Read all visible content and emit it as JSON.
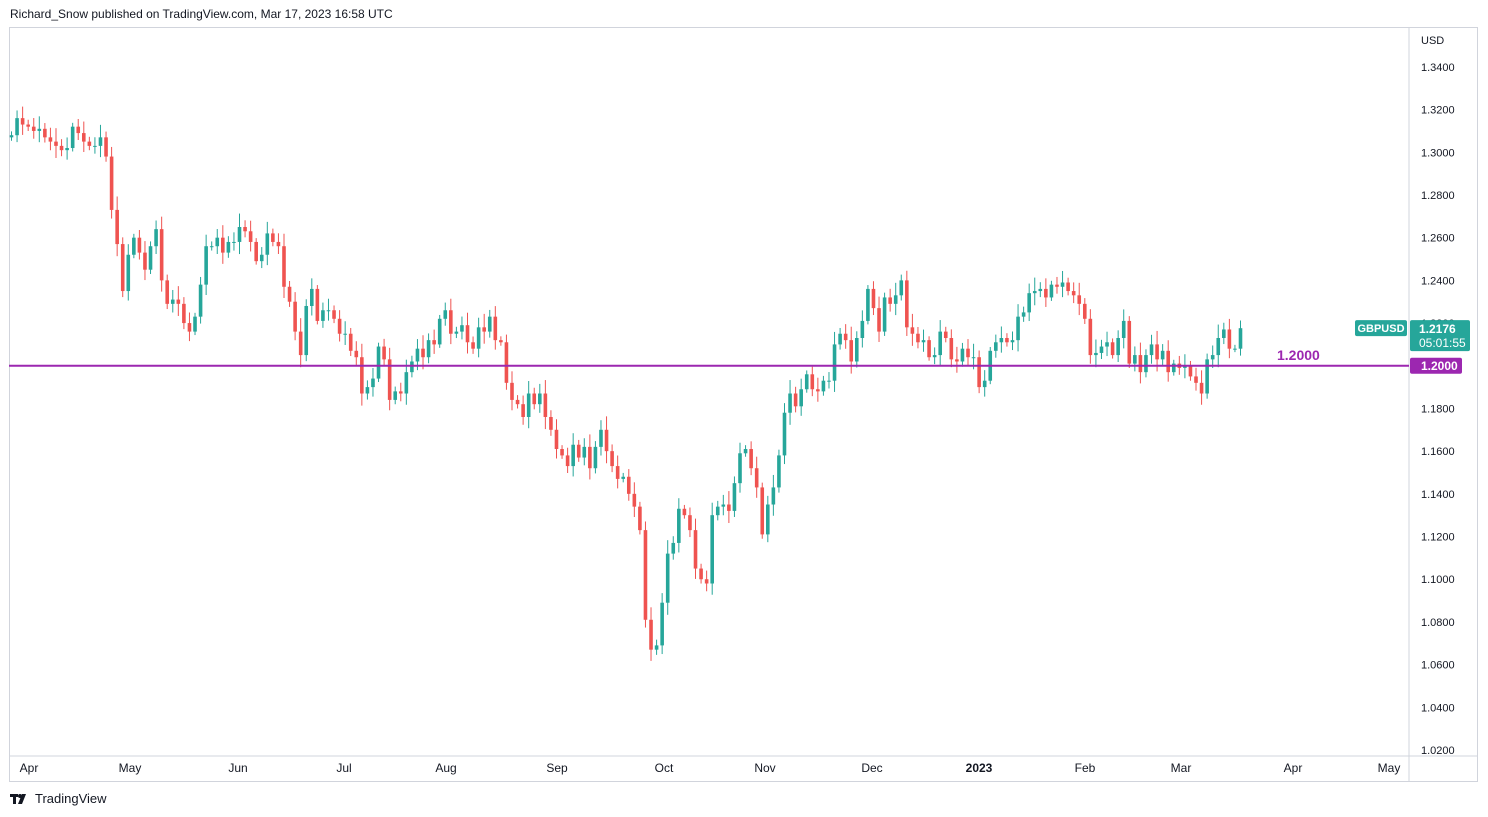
{
  "header": {
    "text": "Richard_Snow published on TradingView.com, Mar 17, 2023 16:58 UTC"
  },
  "footer": {
    "brand": "TradingView",
    "logo_icon": "tradingview-logo-icon"
  },
  "colors": {
    "up": "#26a69a",
    "down": "#ef5350",
    "level": "#9c27b0",
    "price_tag": "#26a69a"
  },
  "chart_data": {
    "type": "candlestick",
    "symbol": "GBPUSD",
    "currency_label": "USD",
    "ylim": [
      1.02,
      1.35
    ],
    "y_ticks": [
      "1.3400",
      "1.3200",
      "1.3000",
      "1.2800",
      "1.2600",
      "1.2400",
      "1.2200",
      "1.2000",
      "1.1800",
      "1.1600",
      "1.1400",
      "1.1200",
      "1.1000",
      "1.0800",
      "1.0600",
      "1.0400",
      "1.0200"
    ],
    "x_ticks": [
      {
        "label": "Apr",
        "bold": false
      },
      {
        "label": "May",
        "bold": false
      },
      {
        "label": "Jun",
        "bold": false
      },
      {
        "label": "Jul",
        "bold": false
      },
      {
        "label": "Aug",
        "bold": false
      },
      {
        "label": "Sep",
        "bold": false
      },
      {
        "label": "Oct",
        "bold": false
      },
      {
        "label": "Nov",
        "bold": false
      },
      {
        "label": "Dec",
        "bold": false
      },
      {
        "label": "2023",
        "bold": true
      },
      {
        "label": "Feb",
        "bold": false
      },
      {
        "label": "Mar",
        "bold": false
      },
      {
        "label": "Apr",
        "bold": false
      },
      {
        "label": "May",
        "bold": false
      }
    ],
    "last_price": "1.2176",
    "countdown": "05:01:55",
    "level": {
      "value": 1.2,
      "label": "1.2000",
      "axis_label": "1.2000"
    },
    "closes": [
      1.308,
      1.316,
      1.313,
      1.312,
      1.31,
      1.311,
      1.307,
      1.305,
      1.303,
      1.301,
      1.302,
      1.312,
      1.309,
      1.305,
      1.303,
      1.303,
      1.307,
      1.298,
      1.273,
      1.257,
      1.235,
      1.252,
      1.26,
      1.253,
      1.245,
      1.256,
      1.264,
      1.24,
      1.229,
      1.231,
      1.229,
      1.22,
      1.216,
      1.223,
      1.238,
      1.256,
      1.256,
      1.26,
      1.253,
      1.258,
      1.258,
      1.265,
      1.263,
      1.258,
      1.249,
      1.252,
      1.262,
      1.258,
      1.256,
      1.237,
      1.23,
      1.216,
      1.205,
      1.228,
      1.236,
      1.221,
      1.226,
      1.226,
      1.222,
      1.215,
      1.215,
      1.207,
      1.204,
      1.187,
      1.19,
      1.194,
      1.209,
      1.203,
      1.184,
      1.188,
      1.187,
      1.197,
      1.202,
      1.208,
      1.204,
      1.212,
      1.21,
      1.222,
      1.226,
      1.215,
      1.216,
      1.219,
      1.211,
      1.208,
      1.218,
      1.216,
      1.223,
      1.212,
      1.211,
      1.192,
      1.184,
      1.182,
      1.176,
      1.187,
      1.182,
      1.187,
      1.176,
      1.17,
      1.161,
      1.158,
      1.153,
      1.163,
      1.157,
      1.162,
      1.152,
      1.162,
      1.17,
      1.16,
      1.153,
      1.147,
      1.148,
      1.14,
      1.134,
      1.123,
      1.081,
      1.067,
      1.069,
      1.089,
      1.112,
      1.117,
      1.133,
      1.13,
      1.123,
      1.105,
      1.1,
      1.098,
      1.13,
      1.134,
      1.135,
      1.132,
      1.145,
      1.159,
      1.161,
      1.152,
      1.143,
      1.121,
      1.135,
      1.143,
      1.158,
      1.178,
      1.187,
      1.181,
      1.189,
      1.196,
      1.189,
      1.188,
      1.193,
      1.193,
      1.21,
      1.215,
      1.212,
      1.202,
      1.213,
      1.221,
      1.236,
      1.227,
      1.216,
      1.232,
      1.229,
      1.233,
      1.24,
      1.218,
      1.215,
      1.211,
      1.212,
      1.204,
      1.205,
      1.216,
      1.213,
      1.203,
      1.202,
      1.208,
      1.204,
      1.204,
      1.19,
      1.193,
      1.207,
      1.211,
      1.213,
      1.211,
      1.212,
      1.223,
      1.225,
      1.234,
      1.235,
      1.236,
      1.232,
      1.238,
      1.237,
      1.239,
      1.235,
      1.233,
      1.229,
      1.222,
      1.205,
      1.206,
      1.209,
      1.211,
      1.205,
      1.213,
      1.221,
      1.201,
      1.205,
      1.197,
      1.205,
      1.21,
      1.203,
      1.207,
      1.197,
      1.201,
      1.199,
      1.2,
      1.195,
      1.192,
      1.187,
      1.203,
      1.205,
      1.213,
      1.217,
      1.208,
      1.208,
      1.2176
    ]
  }
}
